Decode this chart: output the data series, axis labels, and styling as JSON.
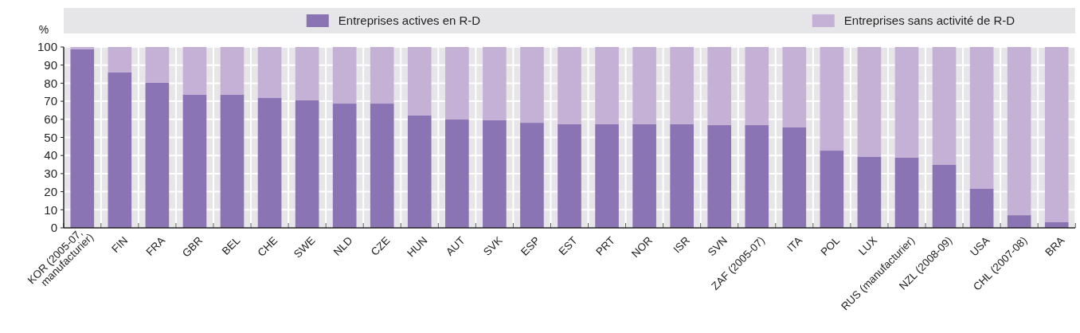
{
  "chart_data": {
    "type": "bar",
    "stacked": true,
    "ylabel": "%",
    "categories": [
      "KOR (2005-07, manufacturier)",
      "FIN",
      "FRA",
      "GBR",
      "BEL",
      "CHE",
      "SWE",
      "NLD",
      "CZE",
      "HUN",
      "AUT",
      "SVK",
      "ESP",
      "EST",
      "PRT",
      "NOR",
      "ISR",
      "SVN",
      "ZAF (2005-07)",
      "ITA",
      "POL",
      "LUX",
      "RUS (manufacturier)",
      "NZL (2008-09)",
      "USA",
      "CHL (2007-08)",
      "BRA"
    ],
    "series": [
      {
        "name": "Entreprises actives en R-D",
        "color": "#8a74b4",
        "values": [
          98.7,
          85.9,
          80.2,
          73.6,
          73.6,
          71.8,
          70.5,
          68.7,
          68.7,
          62.1,
          59.9,
          59.5,
          58.1,
          57.3,
          57.3,
          57.3,
          57.3,
          56.8,
          56.8,
          55.5,
          42.7,
          39.2,
          38.8,
          34.8,
          21.6,
          7.0,
          3.1
        ]
      },
      {
        "name": "Entreprises sans activité de R-D",
        "color": "#c6b1d6",
        "values": [
          1.3,
          14.1,
          19.8,
          26.4,
          26.4,
          28.2,
          29.5,
          31.3,
          31.3,
          37.9,
          40.1,
          40.5,
          41.9,
          42.7,
          42.7,
          42.7,
          42.7,
          43.2,
          43.2,
          44.5,
          57.3,
          60.8,
          61.2,
          65.2,
          78.4,
          93.0,
          96.9
        ]
      }
    ],
    "ylim": [
      0,
      100
    ],
    "yticks": [
      0,
      10,
      20,
      30,
      40,
      50,
      60,
      70,
      80,
      90,
      100
    ],
    "grid": true,
    "legend": "top"
  }
}
